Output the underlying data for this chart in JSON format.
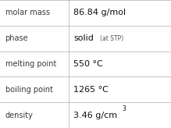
{
  "rows": [
    {
      "label": "molar mass",
      "value": "86.84 g/mol",
      "value_extra": null,
      "superscript": null
    },
    {
      "label": "phase",
      "value": "solid",
      "value_extra": "(at STP)",
      "superscript": null
    },
    {
      "label": "melting point",
      "value": "550 °C",
      "value_extra": null,
      "superscript": null
    },
    {
      "label": "boiling point",
      "value": "1265 °C",
      "value_extra": null,
      "superscript": null
    },
    {
      "label": "density",
      "value": "3.46 g/cm",
      "value_extra": null,
      "superscript": "3"
    }
  ],
  "col_split": 0.4,
  "background_color": "#ffffff",
  "line_color": "#bbbbbb",
  "label_color": "#3a3a3a",
  "value_color": "#111111",
  "extra_color": "#555555",
  "label_fontsize": 7.0,
  "value_fontsize": 8.0,
  "extra_fontsize": 5.5,
  "super_fontsize": 5.5
}
